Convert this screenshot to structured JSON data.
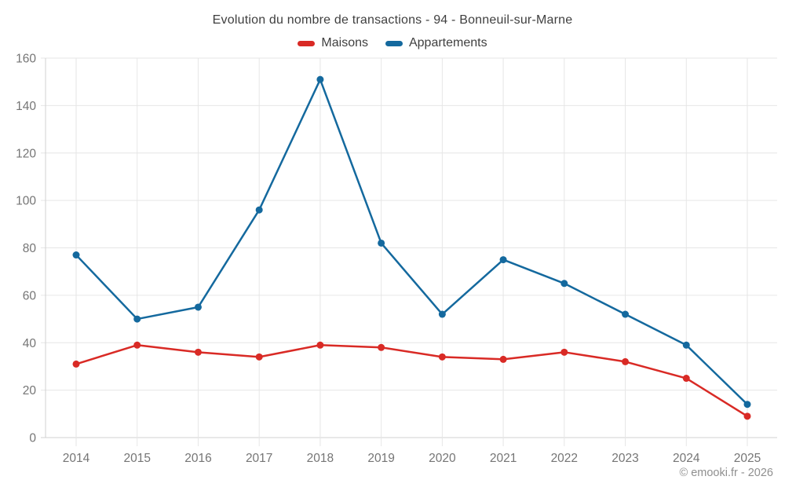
{
  "title": "Evolution du nombre de transactions - 94 - Bonneuil-sur-Marne",
  "footer": "© emooki.fr - 2026",
  "colors": {
    "grid": "#e6e6e6",
    "axis": "#d2d2d2",
    "tick_text": "#757575",
    "title_text": "#3f3f3f",
    "footer_text": "#8f8f8f",
    "background": "#ffffff"
  },
  "chart_data": {
    "type": "line",
    "x": [
      2014,
      2015,
      2016,
      2017,
      2018,
      2019,
      2020,
      2021,
      2022,
      2023,
      2024,
      2025
    ],
    "series": [
      {
        "name": "Maisons",
        "color": "#d92a25",
        "values": [
          31,
          39,
          36,
          34,
          39,
          38,
          34,
          33,
          36,
          32,
          25,
          9
        ]
      },
      {
        "name": "Appartements",
        "color": "#14699e",
        "values": [
          77,
          50,
          55,
          96,
          151,
          82,
          52,
          75,
          65,
          52,
          39,
          14
        ]
      }
    ],
    "ylim": [
      0,
      160
    ],
    "ytick_step": 20,
    "grid": true,
    "legend_position": "top",
    "markers": true,
    "xlabel": "",
    "ylabel": ""
  }
}
